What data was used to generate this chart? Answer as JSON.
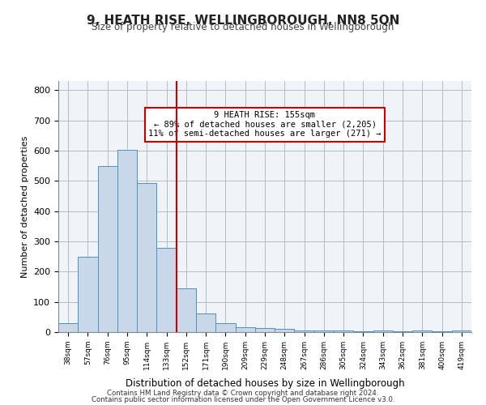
{
  "title": "9, HEATH RISE, WELLINGBOROUGH, NN8 5QN",
  "subtitle": "Size of property relative to detached houses in Wellingborough",
  "xlabel": "Distribution of detached houses by size in Wellingborough",
  "ylabel": "Number of detached properties",
  "categories": [
    "38sqm",
    "57sqm",
    "76sqm",
    "95sqm",
    "114sqm",
    "133sqm",
    "152sqm",
    "171sqm",
    "190sqm",
    "209sqm",
    "229sqm",
    "248sqm",
    "267sqm",
    "286sqm",
    "305sqm",
    "324sqm",
    "343sqm",
    "362sqm",
    "381sqm",
    "400sqm",
    "419sqm"
  ],
  "values": [
    30,
    248,
    548,
    602,
    493,
    278,
    145,
    62,
    30,
    17,
    13,
    12,
    5,
    5,
    5,
    2,
    6,
    2,
    5,
    2,
    5
  ],
  "bar_color": "#c8d8e8",
  "bar_edge_color": "#4a90c4",
  "property_line_x": 5.5,
  "property_label": "9 HEATH RISE: 155sqm",
  "annotation_line1": "← 89% of detached houses are smaller (2,205)",
  "annotation_line2": "11% of semi-detached houses are larger (271) →",
  "annotation_box_color": "#ffffff",
  "annotation_box_edge": "#cc0000",
  "line_color": "#cc0000",
  "ylim": [
    0,
    830
  ],
  "yticks": [
    0,
    100,
    200,
    300,
    400,
    500,
    600,
    700,
    800
  ],
  "footer1": "Contains HM Land Registry data © Crown copyright and database right 2024.",
  "footer2": "Contains public sector information licensed under the Open Government Licence v3.0.",
  "bg_color": "#f0f4f8",
  "plot_bg_color": "#f0f4f8"
}
